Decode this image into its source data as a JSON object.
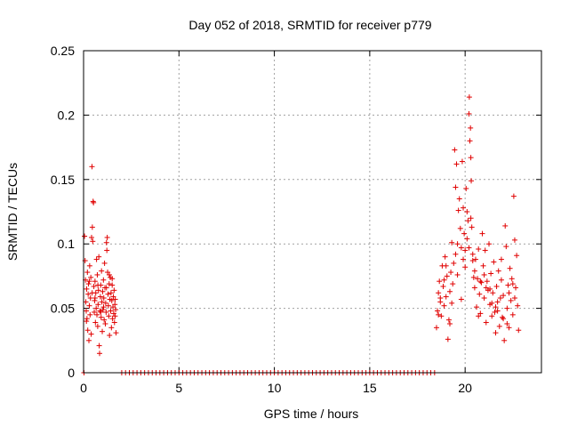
{
  "chart_data": {
    "type": "scatter",
    "title": "Day 052 of 2018, SRMTID for receiver p779",
    "xlabel": "GPS time / hours",
    "ylabel": "SRMTID / TECUs",
    "xlim": [
      0,
      24
    ],
    "ylim": [
      0,
      0.25
    ],
    "xticks": [
      0,
      5,
      10,
      15,
      20
    ],
    "xtick_labels": [
      "0",
      "5",
      "10",
      "15",
      "20"
    ],
    "yticks": [
      0,
      0.05,
      0.1,
      0.15,
      0.2,
      0.25
    ],
    "ytick_labels": [
      "0",
      "0.05",
      "0.1",
      "0.15",
      "0.2",
      "0.25"
    ],
    "grid": true,
    "marker": "+",
    "color": "#e00000",
    "series": [
      {
        "name": "SRMTID",
        "points": [
          [
            0.05,
            0.106
          ],
          [
            0.08,
            0.087
          ],
          [
            0.1,
            0.072
          ],
          [
            0.12,
            0.055
          ],
          [
            0.14,
            0.048
          ],
          [
            0.16,
            0.065
          ],
          [
            0.18,
            0.042
          ],
          [
            0.2,
            0.078
          ],
          [
            0.22,
            0.033
          ],
          [
            0.24,
            0.061
          ],
          [
            0.26,
            0.069
          ],
          [
            0.28,
            0.025
          ],
          [
            0.3,
            0.052
          ],
          [
            0.32,
            0.083
          ],
          [
            0.34,
            0.045
          ],
          [
            0.36,
            0.058
          ],
          [
            0.38,
            0.074
          ],
          [
            0.4,
            0.03
          ],
          [
            0.42,
            0.105
          ],
          [
            0.44,
            0.16
          ],
          [
            0.46,
            0.113
          ],
          [
            0.48,
            0.102
          ],
          [
            0.5,
            0.133
          ],
          [
            0.52,
            0.132
          ],
          [
            0.54,
            0.067
          ],
          [
            0.56,
            0.047
          ],
          [
            0.58,
            0.056
          ],
          [
            0.6,
            0.071
          ],
          [
            0.62,
            0.039
          ],
          [
            0.64,
            0.062
          ],
          [
            0.66,
            0.05
          ],
          [
            0.68,
            0.088
          ],
          [
            0.7,
            0.045
          ],
          [
            0.72,
            0.076
          ],
          [
            0.74,
            0.036
          ],
          [
            0.76,
            0.053
          ],
          [
            0.78,
            0.064
          ],
          [
            0.8,
            0.09
          ],
          [
            0.82,
            0.021
          ],
          [
            0.84,
            0.015
          ],
          [
            0.86,
            0.048
          ],
          [
            0.88,
            0.059
          ],
          [
            0.9,
            0.068
          ],
          [
            0.92,
            0.043
          ],
          [
            0.94,
            0.079
          ],
          [
            0.96,
            0.055
          ],
          [
            0.98,
            0.032
          ],
          [
            1.0,
            0.063
          ],
          [
            1.02,
            0.049
          ],
          [
            1.04,
            0.072
          ],
          [
            1.06,
            0.058
          ],
          [
            1.08,
            0.041
          ],
          [
            1.1,
            0.085
          ],
          [
            1.12,
            0.066
          ],
          [
            1.14,
            0.038
          ],
          [
            1.16,
            0.054
          ],
          [
            1.18,
            0.047
          ],
          [
            1.2,
            0.101
          ],
          [
            1.22,
            0.095
          ],
          [
            1.24,
            0.105
          ],
          [
            1.26,
            0.078
          ],
          [
            1.28,
            0.061
          ],
          [
            1.3,
            0.052
          ],
          [
            1.32,
            0.044
          ],
          [
            1.34,
            0.069
          ],
          [
            1.36,
            0.029
          ],
          [
            1.38,
            0.057
          ],
          [
            1.4,
            0.074
          ],
          [
            1.42,
            0.048
          ],
          [
            1.44,
            0.062
          ],
          [
            1.46,
            0.035
          ],
          [
            1.48,
            0.056
          ],
          [
            1.5,
            0.068
          ],
          [
            1.52,
            0.042
          ],
          [
            1.54,
            0.051
          ],
          [
            1.56,
            0.059
          ],
          [
            1.58,
            0.046
          ],
          [
            1.6,
            0.064
          ],
          [
            1.62,
            0.039
          ],
          [
            1.64,
            0.053
          ],
          [
            1.66,
            0.057
          ],
          [
            1.68,
            0.049
          ],
          [
            1.7,
            0.031
          ],
          [
            0.3,
            0.071
          ],
          [
            0.6,
            0.058
          ],
          [
            0.9,
            0.047
          ],
          [
            1.2,
            0.066
          ],
          [
            1.5,
            0.073
          ],
          [
            0.15,
            0.04
          ],
          [
            0.45,
            0.062
          ],
          [
            0.75,
            0.068
          ],
          [
            1.05,
            0.051
          ],
          [
            1.35,
            0.076
          ],
          [
            1.65,
            0.044
          ],
          [
            2.0,
            0.0
          ],
          [
            2.2,
            0.0
          ],
          [
            2.4,
            0.0
          ],
          [
            2.6,
            0.0
          ],
          [
            2.8,
            0.0
          ],
          [
            3.0,
            0.0
          ],
          [
            3.2,
            0.0
          ],
          [
            3.4,
            0.0
          ],
          [
            3.6,
            0.0
          ],
          [
            3.8,
            0.0
          ],
          [
            4.0,
            0.0
          ],
          [
            4.2,
            0.0
          ],
          [
            4.4,
            0.0
          ],
          [
            4.6,
            0.0
          ],
          [
            4.8,
            0.0
          ],
          [
            5.0,
            0.0
          ],
          [
            5.2,
            0.0
          ],
          [
            5.4,
            0.0
          ],
          [
            5.6,
            0.0
          ],
          [
            5.8,
            0.0
          ],
          [
            6.0,
            0.0
          ],
          [
            6.2,
            0.0
          ],
          [
            6.4,
            0.0
          ],
          [
            6.6,
            0.0
          ],
          [
            6.8,
            0.0
          ],
          [
            7.0,
            0.0
          ],
          [
            7.2,
            0.0
          ],
          [
            7.4,
            0.0
          ],
          [
            7.6,
            0.0
          ],
          [
            7.8,
            0.0
          ],
          [
            8.0,
            0.0
          ],
          [
            8.2,
            0.0
          ],
          [
            8.4,
            0.0
          ],
          [
            8.6,
            0.0
          ],
          [
            8.8,
            0.0
          ],
          [
            9.0,
            0.0
          ],
          [
            9.2,
            0.0
          ],
          [
            9.4,
            0.0
          ],
          [
            9.6,
            0.0
          ],
          [
            9.8,
            0.0
          ],
          [
            10.0,
            0.0
          ],
          [
            10.2,
            0.0
          ],
          [
            10.4,
            0.0
          ],
          [
            10.6,
            0.0
          ],
          [
            10.8,
            0.0
          ],
          [
            11.0,
            0.0
          ],
          [
            11.2,
            0.0
          ],
          [
            11.4,
            0.0
          ],
          [
            11.6,
            0.0
          ],
          [
            11.8,
            0.0
          ],
          [
            12.0,
            0.0
          ],
          [
            12.2,
            0.0
          ],
          [
            12.4,
            0.0
          ],
          [
            12.6,
            0.0
          ],
          [
            12.8,
            0.0
          ],
          [
            13.0,
            0.0
          ],
          [
            13.2,
            0.0
          ],
          [
            13.4,
            0.0
          ],
          [
            13.6,
            0.0
          ],
          [
            13.8,
            0.0
          ],
          [
            14.0,
            0.0
          ],
          [
            14.2,
            0.0
          ],
          [
            14.4,
            0.0
          ],
          [
            14.6,
            0.0
          ],
          [
            14.8,
            0.0
          ],
          [
            15.0,
            0.0
          ],
          [
            15.2,
            0.0
          ],
          [
            15.4,
            0.0
          ],
          [
            15.6,
            0.0
          ],
          [
            15.8,
            0.0
          ],
          [
            16.0,
            0.0
          ],
          [
            16.2,
            0.0
          ],
          [
            16.4,
            0.0
          ],
          [
            16.6,
            0.0
          ],
          [
            16.8,
            0.0
          ],
          [
            17.0,
            0.0
          ],
          [
            17.2,
            0.0
          ],
          [
            17.4,
            0.0
          ],
          [
            17.6,
            0.0
          ],
          [
            17.8,
            0.0
          ],
          [
            18.0,
            0.0
          ],
          [
            18.2,
            0.0
          ],
          [
            18.4,
            0.0
          ],
          [
            0.02,
            0.0
          ],
          [
            18.5,
            0.035
          ],
          [
            18.55,
            0.048
          ],
          [
            18.6,
            0.062
          ],
          [
            18.65,
            0.071
          ],
          [
            18.7,
            0.055
          ],
          [
            18.75,
            0.044
          ],
          [
            18.8,
            0.083
          ],
          [
            18.85,
            0.067
          ],
          [
            18.9,
            0.052
          ],
          [
            18.95,
            0.09
          ],
          [
            19.0,
            0.059
          ],
          [
            19.05,
            0.075
          ],
          [
            19.1,
            0.026
          ],
          [
            19.15,
            0.041
          ],
          [
            19.2,
            0.063
          ],
          [
            19.25,
            0.078
          ],
          [
            19.3,
            0.054
          ],
          [
            19.35,
            0.069
          ],
          [
            19.4,
            0.085
          ],
          [
            19.45,
            0.173
          ],
          [
            19.5,
            0.144
          ],
          [
            19.55,
            0.162
          ],
          [
            19.6,
            0.1
          ],
          [
            19.65,
            0.126
          ],
          [
            19.7,
            0.135
          ],
          [
            19.75,
            0.112
          ],
          [
            19.8,
            0.097
          ],
          [
            19.85,
            0.164
          ],
          [
            19.9,
            0.128
          ],
          [
            19.95,
            0.108
          ],
          [
            20.0,
            0.082
          ],
          [
            20.05,
            0.143
          ],
          [
            20.1,
            0.125
          ],
          [
            20.15,
            0.118
          ],
          [
            20.2,
            0.201
          ],
          [
            20.22,
            0.214
          ],
          [
            20.25,
            0.18
          ],
          [
            20.28,
            0.19
          ],
          [
            20.3,
            0.167
          ],
          [
            20.32,
            0.149
          ],
          [
            20.35,
            0.113
          ],
          [
            20.4,
            0.092
          ],
          [
            20.45,
            0.074
          ],
          [
            20.5,
            0.066
          ],
          [
            20.55,
            0.088
          ],
          [
            20.6,
            0.051
          ],
          [
            20.65,
            0.073
          ],
          [
            20.7,
            0.096
          ],
          [
            20.75,
            0.061
          ],
          [
            20.8,
            0.046
          ],
          [
            20.85,
            0.07
          ],
          [
            20.9,
            0.108
          ],
          [
            20.95,
            0.083
          ],
          [
            21.0,
            0.058
          ],
          [
            21.05,
            0.095
          ],
          [
            21.1,
            0.039
          ],
          [
            21.15,
            0.071
          ],
          [
            21.2,
            0.064
          ],
          [
            21.25,
            0.1
          ],
          [
            21.3,
            0.053
          ],
          [
            21.35,
            0.077
          ],
          [
            21.4,
            0.044
          ],
          [
            21.45,
            0.062
          ],
          [
            21.5,
            0.086
          ],
          [
            21.55,
            0.047
          ],
          [
            21.6,
            0.031
          ],
          [
            21.65,
            0.067
          ],
          [
            21.7,
            0.055
          ],
          [
            21.75,
            0.079
          ],
          [
            21.8,
            0.036
          ],
          [
            21.85,
            0.058
          ],
          [
            21.9,
            0.072
          ],
          [
            21.95,
            0.043
          ],
          [
            22.0,
            0.06
          ],
          [
            22.05,
            0.025
          ],
          [
            22.1,
            0.114
          ],
          [
            22.15,
            0.098
          ],
          [
            22.2,
            0.05
          ],
          [
            22.25,
            0.068
          ],
          [
            22.3,
            0.035
          ],
          [
            22.35,
            0.081
          ],
          [
            22.4,
            0.056
          ],
          [
            22.45,
            0.073
          ],
          [
            22.5,
            0.045
          ],
          [
            22.55,
            0.137
          ],
          [
            22.6,
            0.103
          ],
          [
            22.65,
            0.066
          ],
          [
            22.7,
            0.091
          ],
          [
            22.75,
            0.052
          ],
          [
            22.8,
            0.033
          ],
          [
            18.6,
            0.045
          ],
          [
            18.9,
            0.072
          ],
          [
            19.2,
            0.038
          ],
          [
            19.5,
            0.092
          ],
          [
            19.8,
            0.057
          ],
          [
            20.1,
            0.104
          ],
          [
            20.4,
            0.087
          ],
          [
            20.7,
            0.044
          ],
          [
            21.0,
            0.076
          ],
          [
            21.3,
            0.065
          ],
          [
            21.6,
            0.051
          ],
          [
            21.9,
            0.088
          ],
          [
            22.2,
            0.038
          ],
          [
            22.5,
            0.069
          ],
          [
            18.7,
            0.058
          ],
          [
            19.0,
            0.083
          ],
          [
            19.3,
            0.101
          ],
          [
            19.6,
            0.076
          ],
          [
            19.9,
            0.088
          ],
          [
            20.2,
            0.097
          ],
          [
            20.5,
            0.079
          ],
          [
            20.8,
            0.071
          ],
          [
            21.1,
            0.066
          ],
          [
            21.4,
            0.054
          ],
          [
            21.7,
            0.048
          ],
          [
            22.0,
            0.042
          ],
          [
            22.3,
            0.062
          ],
          [
            22.6,
            0.058
          ],
          [
            20.0,
            0.095
          ],
          [
            20.3,
            0.12
          ]
        ]
      }
    ]
  }
}
